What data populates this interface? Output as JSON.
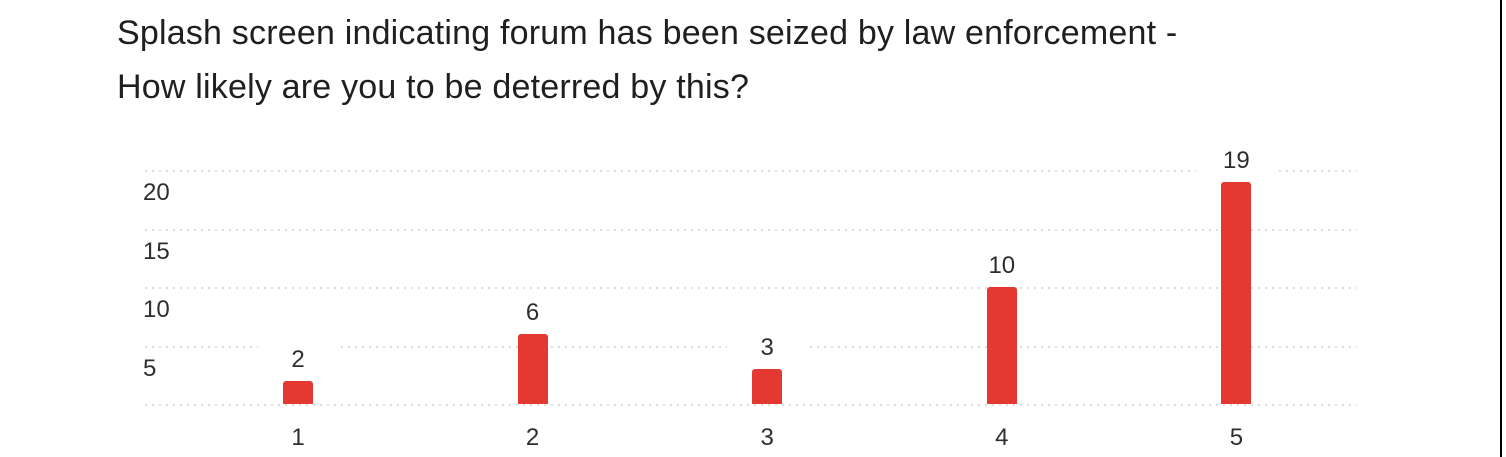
{
  "page": {
    "background": "#ffffff",
    "right_edge_color": "#000000"
  },
  "chart_data": {
    "type": "bar",
    "title": "Splash screen indicating forum has been seized by law enforcement - How likely are you to be deterred by this?",
    "title_lines": [
      "Splash screen indicating forum has been seized by law enforcement -",
      "How likely are you to be deterred by this?"
    ],
    "categories": [
      "1",
      "2",
      "3",
      "4",
      "5"
    ],
    "values": [
      2,
      6,
      3,
      10,
      19
    ],
    "data_labels": [
      "2",
      "6",
      "3",
      "10",
      "19"
    ],
    "yticks": [
      5,
      10,
      15,
      20
    ],
    "ytick_labels": [
      "5",
      "10",
      "15",
      "20"
    ],
    "ylim": [
      0,
      21
    ],
    "xlabel": "",
    "ylabel": "",
    "legend": "none",
    "grid": "horizontal-dotted",
    "bar_color": "#e33930",
    "grid_color": "#dcdcdc",
    "text_color": "#2e2e2e",
    "title_color": "#1f1f1f"
  }
}
